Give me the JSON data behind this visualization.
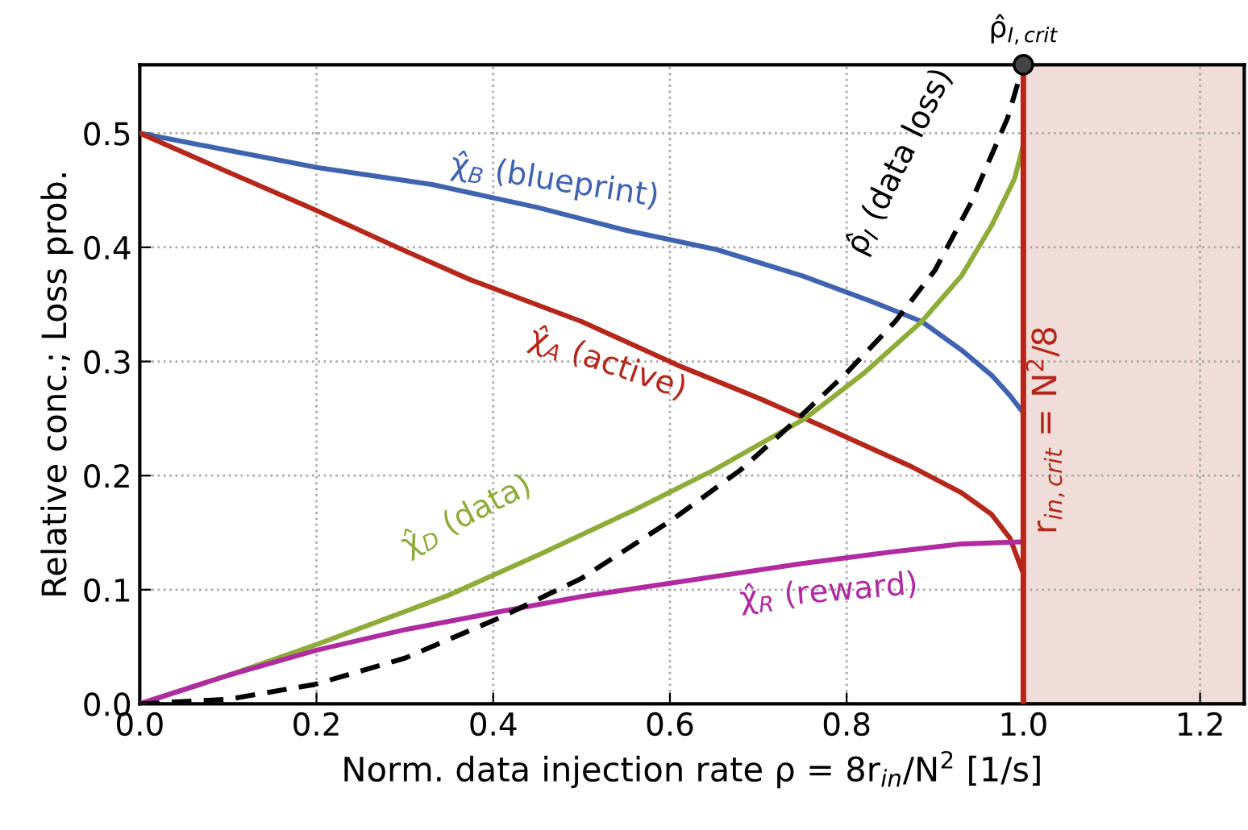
{
  "chart_data": {
    "type": "line",
    "xlabel": "Norm. data injection rate ρ = 8r$_{in}$/N$^{2}$ [1/s]",
    "ylabel": "Relative conc.; Loss prob.",
    "xlim": [
      0,
      1.25
    ],
    "ylim": [
      0,
      0.56
    ],
    "xticks": [
      {
        "value": 0,
        "label": "0.0"
      },
      {
        "value": 0.2,
        "label": "0.2"
      },
      {
        "value": 0.4,
        "label": "0.4"
      },
      {
        "value": 0.6,
        "label": "0.6"
      },
      {
        "value": 0.8,
        "label": "0.8"
      },
      {
        "value": 1.0,
        "label": "1.0"
      },
      {
        "value": 1.2,
        "label": "1.2"
      }
    ],
    "yticks": [
      {
        "value": 0,
        "label": "0.0"
      },
      {
        "value": 0.1,
        "label": "0.1"
      },
      {
        "value": 0.2,
        "label": "0.2"
      },
      {
        "value": 0.3,
        "label": "0.3"
      },
      {
        "value": 0.4,
        "label": "0.4"
      },
      {
        "value": 0.5,
        "label": "0.5"
      }
    ],
    "grid": true,
    "legend": false,
    "series": [
      {
        "name": "χ̂$_{B}$ (blueprint)",
        "color": "#4063b0",
        "x": [
          0,
          0.1,
          0.2,
          0.331,
          0.45,
          0.55,
          0.653,
          0.75,
          0.83,
          0.885,
          0.93,
          0.964,
          0.985,
          1.0
        ],
        "values": [
          0.5,
          0.485,
          0.47,
          0.455,
          0.435,
          0.415,
          0.398,
          0.375,
          0.352,
          0.335,
          0.31,
          0.288,
          0.27,
          0.255
        ]
      },
      {
        "name": "χ̂$_{A}$ (active)",
        "color": "#b5271b",
        "x": [
          0,
          0.1,
          0.198,
          0.3,
          0.373,
          0.5,
          0.608,
          0.7,
          0.753,
          0.873,
          0.93,
          0.964,
          0.985,
          1.0
        ],
        "values": [
          0.5,
          0.466,
          0.433,
          0.397,
          0.372,
          0.335,
          0.297,
          0.268,
          0.25,
          0.208,
          0.185,
          0.166,
          0.145,
          0.114
        ]
      },
      {
        "name": "χ̂$_{D}$ (data)",
        "color": "#8fac3a",
        "x": [
          0,
          0.1,
          0.2,
          0.349,
          0.45,
          0.56,
          0.65,
          0.753,
          0.82,
          0.885,
          0.93,
          0.964,
          0.99,
          1.0
        ],
        "values": [
          0,
          0.025,
          0.052,
          0.095,
          0.13,
          0.17,
          0.205,
          0.25,
          0.29,
          0.335,
          0.375,
          0.419,
          0.46,
          0.49
        ]
      },
      {
        "name": "χ̂$_{R}$ (reward)",
        "color": "#b02aa0",
        "x": [
          0,
          0.1,
          0.2,
          0.3,
          0.409,
          0.5,
          0.62,
          0.75,
          0.85,
          0.928,
          1.0
        ],
        "values": [
          0,
          0.025,
          0.047,
          0.065,
          0.081,
          0.094,
          0.108,
          0.123,
          0.133,
          0.14,
          0.142
        ]
      },
      {
        "name": "ρ̂$_{I}$ (data loss)",
        "color": "#000000",
        "line_style": "dashed",
        "x": [
          0,
          0.1,
          0.198,
          0.3,
          0.409,
          0.5,
          0.602,
          0.68,
          0.745,
          0.8,
          0.855,
          0.9,
          0.94,
          0.982,
          1.0
        ],
        "values": [
          0,
          0.004,
          0.017,
          0.04,
          0.076,
          0.11,
          0.161,
          0.205,
          0.25,
          0.29,
          0.335,
          0.38,
          0.438,
          0.513,
          0.56
        ]
      },
      {
        "type": "scatter",
        "color": "#444444",
        "marker": "circle",
        "x": [
          1.0
        ],
        "values": [
          0.56
        ]
      }
    ],
    "ref_lines": [
      {
        "axis": "x",
        "value": 1.0,
        "label": "r$_{in,crit}$ = N$^{2}$/8",
        "color": "#b5271b"
      }
    ],
    "bands": [
      {
        "axis": "x",
        "from": 1.0,
        "to": 1.25,
        "color": "#f0dcd8"
      }
    ],
    "annotations": [
      {
        "text": "ρ̂$_{I,crit}$",
        "x": 1.0,
        "y": 0.56
      }
    ]
  }
}
